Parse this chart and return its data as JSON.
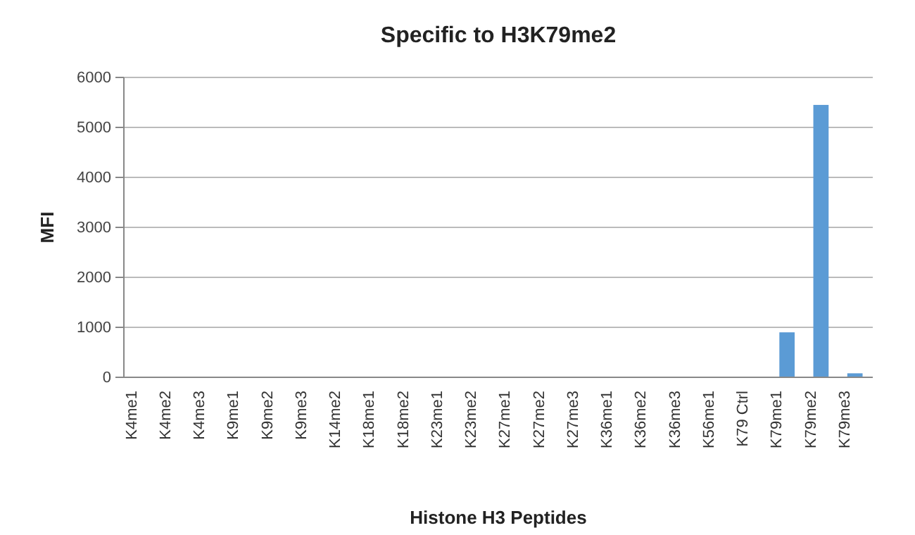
{
  "chart_data": {
    "type": "bar",
    "title": "Specific to H3K79me2",
    "xlabel": "Histone H3 Peptides",
    "ylabel": "MFI",
    "categories": [
      "K4me1",
      "K4me2",
      "K4me3",
      "K9me1",
      "K9me2",
      "K9me3",
      "K14me2",
      "K18me1",
      "K18me2",
      "K23me1",
      "K23me2",
      "K27me1",
      "K27me2",
      "K27me3",
      "K36me1",
      "K36me2",
      "K36me3",
      "K56me1",
      "K79 Ctrl",
      "K79me1",
      "K79me2",
      "K79me3"
    ],
    "values": [
      10,
      10,
      10,
      10,
      10,
      10,
      10,
      10,
      10,
      10,
      10,
      10,
      10,
      10,
      10,
      10,
      10,
      10,
      10,
      900,
      5450,
      80
    ],
    "color": "#5b9bd5",
    "ylim": [
      0,
      6000
    ],
    "yticks": [
      0,
      1000,
      2000,
      3000,
      4000,
      5000,
      6000
    ],
    "grid": "y"
  }
}
